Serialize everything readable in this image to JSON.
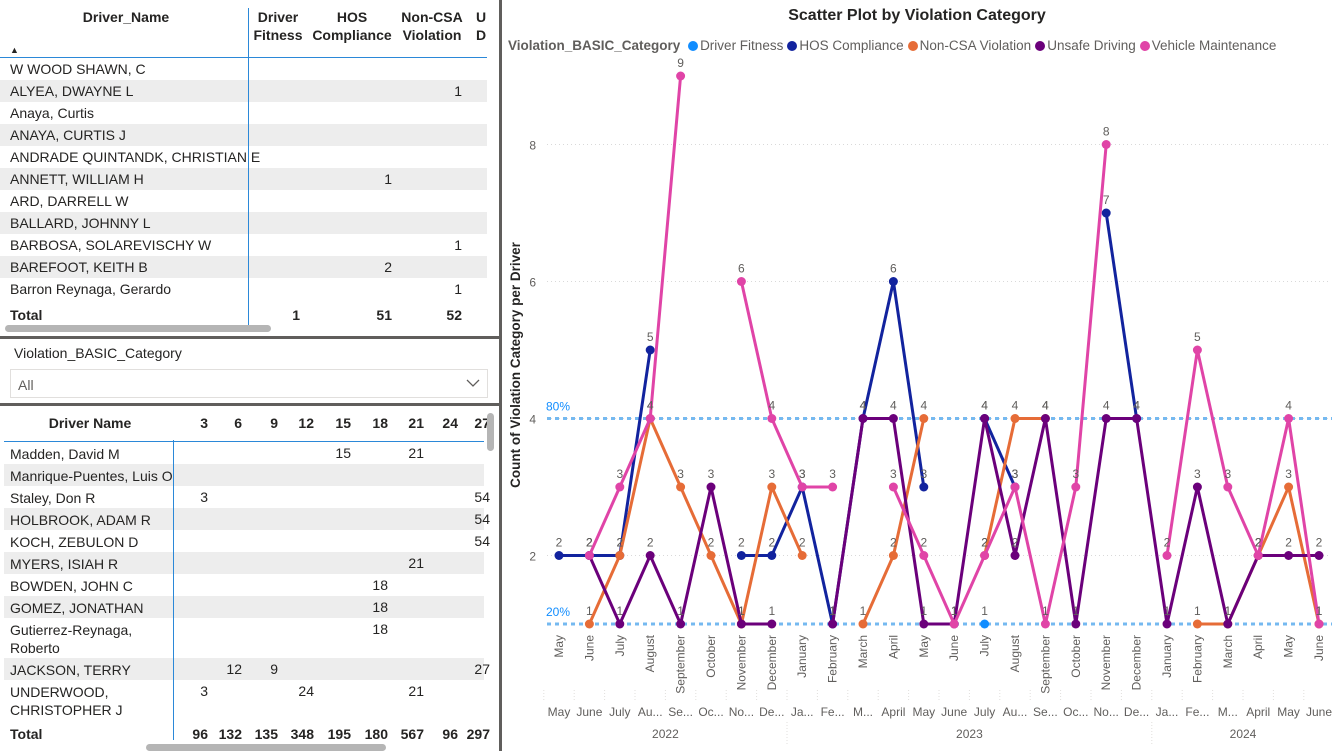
{
  "table1": {
    "headers": {
      "name": "Driver_Name",
      "driver_fitness": [
        "Driver",
        "Fitness"
      ],
      "hos": [
        "HOS",
        "Compliance"
      ],
      "noncsa": [
        "Non-CSA",
        "Violation"
      ],
      "unsafe_cut": [
        "U",
        "D"
      ]
    },
    "rows": [
      {
        "name": "W WOOD SHAWN, C",
        "df": "",
        "hos": "",
        "ncsa": ""
      },
      {
        "name": "ALYEA, DWAYNE L",
        "df": "",
        "hos": "",
        "ncsa": "1"
      },
      {
        "name": "Anaya, Curtis",
        "df": "",
        "hos": "",
        "ncsa": ""
      },
      {
        "name": "ANAYA, CURTIS J",
        "df": "",
        "hos": "",
        "ncsa": ""
      },
      {
        "name": "ANDRADE QUINTANDK, CHRISTIAN E",
        "df": "",
        "hos": "",
        "ncsa": ""
      },
      {
        "name": "ANNETT, WILLIAM H",
        "df": "",
        "hos": "1",
        "ncsa": ""
      },
      {
        "name": "ARD, DARRELL W",
        "df": "",
        "hos": "",
        "ncsa": ""
      },
      {
        "name": "BALLARD, JOHNNY L",
        "df": "",
        "hos": "",
        "ncsa": ""
      },
      {
        "name": "BARBOSA, SOLAREVISCHY W",
        "df": "",
        "hos": "",
        "ncsa": "1"
      },
      {
        "name": "BAREFOOT, KEITH B",
        "df": "",
        "hos": "2",
        "ncsa": ""
      },
      {
        "name": "Barron Reynaga, Gerardo",
        "df": "",
        "hos": "",
        "ncsa": "1"
      }
    ],
    "total": {
      "label": "Total",
      "df": "1",
      "hos": "51",
      "ncsa": "52"
    }
  },
  "slicer": {
    "title": "Violation_BASIC_Category",
    "value": "All",
    "icon": "chevron-down-icon"
  },
  "table2": {
    "header_name": "Driver Name",
    "columns": [
      "3",
      "6",
      "9",
      "12",
      "15",
      "18",
      "21",
      "24",
      "27"
    ],
    "rows": [
      {
        "name": [
          "Madden, David M"
        ],
        "cells": [
          "",
          "",
          "",
          "",
          "15",
          "",
          "21",
          "",
          ""
        ]
      },
      {
        "name": [
          "Manrique-Puentes, Luis O"
        ],
        "cells": [
          "",
          "",
          "",
          "",
          "",
          "",
          "",
          "",
          ""
        ]
      },
      {
        "name": [
          "Staley, Don R"
        ],
        "cells": [
          "3",
          "",
          "",
          "",
          "",
          "",
          "",
          "",
          "54"
        ]
      },
      {
        "name": [
          "HOLBROOK, ADAM R"
        ],
        "cells": [
          "",
          "",
          "",
          "",
          "",
          "",
          "",
          "",
          "54"
        ]
      },
      {
        "name": [
          "KOCH, ZEBULON D"
        ],
        "cells": [
          "",
          "",
          "",
          "",
          "",
          "",
          "",
          "",
          "54"
        ]
      },
      {
        "name": [
          "MYERS, ISIAH R"
        ],
        "cells": [
          "",
          "",
          "",
          "",
          "",
          "",
          "21",
          "",
          ""
        ]
      },
      {
        "name": [
          "BOWDEN, JOHN C"
        ],
        "cells": [
          "",
          "",
          "",
          "",
          "",
          "18",
          "",
          "",
          ""
        ]
      },
      {
        "name": [
          "GOMEZ, JONATHAN"
        ],
        "cells": [
          "",
          "",
          "",
          "",
          "",
          "18",
          "",
          "",
          ""
        ]
      },
      {
        "name": [
          "Gutierrez-Reynaga,",
          "Roberto"
        ],
        "cells": [
          "",
          "",
          "",
          "",
          "",
          "18",
          "",
          "",
          ""
        ]
      },
      {
        "name": [
          "JACKSON, TERRY"
        ],
        "cells": [
          "",
          "12",
          "9",
          "",
          "",
          "",
          "",
          "",
          "27"
        ]
      },
      {
        "name": [
          "UNDERWOOD,",
          "CHRISTOPHER J"
        ],
        "cells": [
          "3",
          "",
          "",
          "24",
          "",
          "",
          "21",
          "",
          ""
        ]
      }
    ],
    "total": {
      "label": "Total",
      "cells": [
        "96",
        "132",
        "135",
        "348",
        "195",
        "180",
        "567",
        "96",
        "297"
      ]
    }
  },
  "chart_data": {
    "type": "line",
    "title": "Scatter Plot by Violation Category",
    "legend_title": "Violation_BASIC_Category",
    "legend_position": "top-left",
    "ylabel": "Count of Violation Category per Driver",
    "ylim": [
      1,
      9.6
    ],
    "yticks": [
      "2",
      "4",
      "6",
      "8"
    ],
    "grid": true,
    "months": [
      "May",
      "June",
      "July",
      "August",
      "September",
      "October",
      "November",
      "December",
      "January",
      "February",
      "March",
      "April",
      "May",
      "June",
      "July",
      "August",
      "September",
      "October",
      "November",
      "December",
      "January",
      "February",
      "March",
      "April",
      "May",
      "June"
    ],
    "months_short": [
      "May",
      "June",
      "July",
      "Au...",
      "Se...",
      "Oc...",
      "No...",
      "De...",
      "Ja...",
      "Fe...",
      "M...",
      "April",
      "May",
      "June",
      "July",
      "Au...",
      "Se...",
      "Oc...",
      "No...",
      "De...",
      "Ja...",
      "Fe...",
      "M...",
      "April",
      "May",
      "June"
    ],
    "years": [
      {
        "label": "2022",
        "start": 0,
        "end": 8
      },
      {
        "label": "2023",
        "start": 8,
        "end": 20
      },
      {
        "label": "2024",
        "start": 20,
        "end": 26
      }
    ],
    "reference_lines": [
      {
        "label": "80%",
        "value": 4
      },
      {
        "label": "20%",
        "value": 1
      }
    ],
    "series": [
      {
        "name": "Driver Fitness",
        "color": "#118DFF",
        "values": [
          null,
          null,
          null,
          null,
          null,
          null,
          null,
          null,
          null,
          null,
          null,
          null,
          null,
          null,
          1,
          null,
          null,
          null,
          null,
          null,
          null,
          null,
          null,
          null,
          null,
          null
        ]
      },
      {
        "name": "HOS Compliance",
        "color": "#12239E",
        "values": [
          2,
          2,
          2,
          5,
          null,
          null,
          2,
          2,
          3,
          1,
          4,
          6,
          3,
          null,
          4,
          3,
          null,
          null,
          7,
          4,
          null,
          null,
          null,
          null,
          null,
          null
        ]
      },
      {
        "name": "Non-CSA Violation",
        "color": "#E66C37",
        "values": [
          null,
          1,
          2,
          4,
          3,
          2,
          1,
          3,
          2,
          null,
          1,
          2,
          4,
          null,
          2,
          4,
          4,
          null,
          null,
          null,
          null,
          1,
          1,
          2,
          3,
          1
        ]
      },
      {
        "name": "Unsafe Driving",
        "color": "#6B007B",
        "values": [
          null,
          2,
          1,
          2,
          1,
          3,
          1,
          1,
          null,
          1,
          4,
          4,
          1,
          1,
          4,
          2,
          4,
          1,
          4,
          4,
          1,
          3,
          1,
          2,
          2,
          2
        ]
      },
      {
        "name": "Vehicle Maintenance",
        "color": "#E044A7",
        "values": [
          null,
          2,
          3,
          4,
          9,
          null,
          6,
          4,
          3,
          3,
          null,
          3,
          2,
          1,
          2,
          3,
          1,
          3,
          8,
          null,
          2,
          5,
          3,
          2,
          4,
          1
        ]
      }
    ]
  }
}
